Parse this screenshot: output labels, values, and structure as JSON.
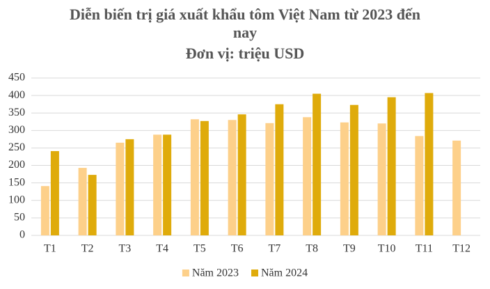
{
  "chart_data": {
    "type": "bar",
    "title": "Diễn biến trị giá xuất khẩu tôm Việt Nam từ 2023 đến nay",
    "subtitle": "Đơn vị: triệu USD",
    "categories": [
      "T1",
      "T2",
      "T3",
      "T4",
      "T5",
      "T6",
      "T7",
      "T8",
      "T9",
      "T10",
      "T11",
      "T12"
    ],
    "series": [
      {
        "name": "Năm 2023",
        "color": "#fdd08a",
        "values": [
          141,
          193,
          265,
          288,
          332,
          330,
          321,
          338,
          323,
          320,
          284,
          271
        ]
      },
      {
        "name": "Năm 2024",
        "color": "#dfab0b",
        "values": [
          241,
          173,
          275,
          288,
          327,
          346,
          375,
          405,
          373,
          395,
          407,
          null
        ]
      }
    ],
    "ylim": [
      0,
      450
    ],
    "yticks": [
      0,
      50,
      100,
      150,
      200,
      250,
      300,
      350,
      400,
      450
    ],
    "grid": true,
    "legend": "bottom"
  }
}
